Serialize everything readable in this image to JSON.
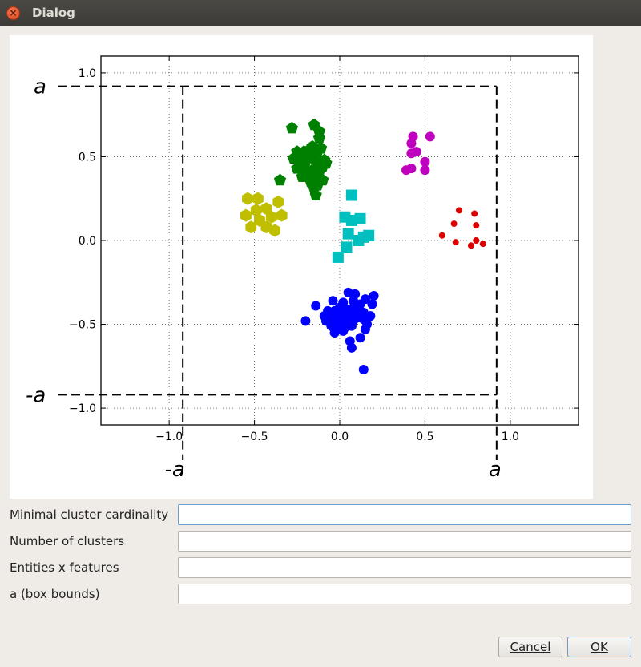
{
  "window": {
    "title": "Dialog",
    "close_icon": "close-icon"
  },
  "chart_data": {
    "type": "scatter",
    "title": "",
    "xlabel": "",
    "ylabel": "",
    "xlim": [
      -1.4,
      1.4
    ],
    "ylim": [
      -1.1,
      1.1
    ],
    "grid": true,
    "x_ticks": [
      -1.0,
      -0.5,
      0.0,
      0.5,
      1.0
    ],
    "x_tick_labels": [
      "−1.0",
      "−0.5",
      "0.0",
      "0.5",
      "1.0"
    ],
    "y_ticks": [
      1.0,
      0.5,
      0.0,
      -0.5,
      -1.0
    ],
    "y_tick_labels": [
      "1.0",
      "0.5",
      "0.0",
      "−0.5",
      "−1.0"
    ],
    "box_bound": 0.92,
    "box_labels": {
      "top": "a",
      "bottom": "-a",
      "left": "-a",
      "right": "a"
    },
    "series": [
      {
        "color": "#008000",
        "marker": "pentagon",
        "points": [
          [
            -0.28,
            0.67
          ],
          [
            -0.15,
            0.69
          ],
          [
            -0.12,
            0.65
          ],
          [
            -0.12,
            0.61
          ],
          [
            -0.25,
            0.53
          ],
          [
            -0.21,
            0.53
          ],
          [
            -0.18,
            0.54
          ],
          [
            -0.2,
            0.47
          ],
          [
            -0.13,
            0.53
          ],
          [
            -0.11,
            0.55
          ],
          [
            -0.27,
            0.49
          ],
          [
            -0.22,
            0.48
          ],
          [
            -0.17,
            0.51
          ],
          [
            -0.15,
            0.5
          ],
          [
            -0.14,
            0.47
          ],
          [
            -0.21,
            0.43
          ],
          [
            -0.16,
            0.42
          ],
          [
            -0.1,
            0.44
          ],
          [
            -0.25,
            0.43
          ],
          [
            -0.18,
            0.4
          ],
          [
            -0.13,
            0.38
          ],
          [
            -0.09,
            0.48
          ],
          [
            -0.22,
            0.38
          ],
          [
            -0.35,
            0.36
          ],
          [
            -0.13,
            0.33
          ],
          [
            -0.17,
            0.35
          ],
          [
            -0.23,
            0.45
          ],
          [
            -0.12,
            0.41
          ],
          [
            -0.08,
            0.46
          ],
          [
            -0.15,
            0.31
          ],
          [
            -0.1,
            0.36
          ],
          [
            -0.14,
            0.27
          ],
          [
            -0.2,
            0.5
          ],
          [
            -0.16,
            0.56
          ]
        ]
      },
      {
        "color": "#bfbf00",
        "marker": "hexagon",
        "points": [
          [
            -0.54,
            0.25
          ],
          [
            -0.48,
            0.25
          ],
          [
            -0.36,
            0.23
          ],
          [
            -0.49,
            0.18
          ],
          [
            -0.43,
            0.19
          ],
          [
            -0.55,
            0.15
          ],
          [
            -0.4,
            0.14
          ],
          [
            -0.34,
            0.15
          ],
          [
            -0.47,
            0.12
          ],
          [
            -0.52,
            0.08
          ],
          [
            -0.43,
            0.08
          ],
          [
            -0.38,
            0.06
          ]
        ]
      },
      {
        "color": "#bf00bf",
        "marker": "circle",
        "points": [
          [
            0.43,
            0.62
          ],
          [
            0.53,
            0.62
          ],
          [
            0.42,
            0.58
          ],
          [
            0.45,
            0.53
          ],
          [
            0.42,
            0.52
          ],
          [
            0.39,
            0.42
          ],
          [
            0.42,
            0.43
          ],
          [
            0.5,
            0.47
          ],
          [
            0.5,
            0.42
          ]
        ]
      },
      {
        "color": "#00bfbf",
        "marker": "square",
        "points": [
          [
            0.07,
            0.27
          ],
          [
            0.03,
            0.14
          ],
          [
            0.07,
            0.12
          ],
          [
            0.12,
            0.13
          ],
          [
            0.05,
            0.04
          ],
          [
            0.14,
            0.02
          ],
          [
            0.17,
            0.03
          ],
          [
            0.04,
            -0.04
          ],
          [
            0.11,
            0.0
          ],
          [
            -0.01,
            -0.1
          ]
        ]
      },
      {
        "color": "#dd0000",
        "marker": "circle",
        "points": [
          [
            0.7,
            0.18
          ],
          [
            0.79,
            0.16
          ],
          [
            0.67,
            0.1
          ],
          [
            0.8,
            0.09
          ],
          [
            0.6,
            0.03
          ],
          [
            0.68,
            -0.01
          ],
          [
            0.8,
            0.0
          ],
          [
            0.77,
            -0.03
          ],
          [
            0.84,
            -0.02
          ]
        ]
      },
      {
        "color": "#0000ff",
        "marker": "circle",
        "points": [
          [
            0.05,
            -0.31
          ],
          [
            0.09,
            -0.32
          ],
          [
            0.15,
            -0.35
          ],
          [
            0.2,
            -0.33
          ],
          [
            -0.04,
            -0.36
          ],
          [
            0.02,
            -0.37
          ],
          [
            0.08,
            -0.36
          ],
          [
            0.12,
            -0.38
          ],
          [
            0.19,
            -0.38
          ],
          [
            0.0,
            -0.4
          ],
          [
            0.04,
            -0.41
          ],
          [
            0.08,
            -0.4
          ],
          [
            -0.07,
            -0.42
          ],
          [
            -0.03,
            -0.42
          ],
          [
            0.02,
            -0.43
          ],
          [
            0.06,
            -0.43
          ],
          [
            0.1,
            -0.43
          ],
          [
            0.14,
            -0.43
          ],
          [
            -0.09,
            -0.45
          ],
          [
            -0.05,
            -0.45
          ],
          [
            -0.01,
            -0.45
          ],
          [
            0.03,
            -0.46
          ],
          [
            0.07,
            -0.45
          ],
          [
            0.11,
            -0.46
          ],
          [
            -0.08,
            -0.48
          ],
          [
            -0.04,
            -0.48
          ],
          [
            0.0,
            -0.49
          ],
          [
            0.04,
            -0.49
          ],
          [
            0.08,
            -0.48
          ],
          [
            0.14,
            -0.47
          ],
          [
            0.18,
            -0.45
          ],
          [
            -0.05,
            -0.51
          ],
          [
            -0.01,
            -0.52
          ],
          [
            0.03,
            -0.52
          ],
          [
            0.07,
            -0.51
          ],
          [
            -0.03,
            -0.55
          ],
          [
            0.02,
            -0.54
          ],
          [
            0.15,
            -0.53
          ],
          [
            -0.2,
            -0.48
          ],
          [
            0.12,
            -0.58
          ],
          [
            0.06,
            -0.6
          ],
          [
            0.07,
            -0.64
          ],
          [
            0.14,
            -0.77
          ],
          [
            -0.14,
            -0.39
          ],
          [
            0.16,
            -0.5
          ],
          [
            0.01,
            -0.47
          ]
        ]
      }
    ]
  },
  "form": {
    "fields": [
      {
        "label": "Minimal cluster cardinality",
        "value": ""
      },
      {
        "label": "Number of clusters",
        "value": ""
      },
      {
        "label": "Entities x features",
        "value": ""
      },
      {
        "label": "a (box bounds)",
        "value": ""
      }
    ]
  },
  "buttons": {
    "cancel": "Cancel",
    "ok": "OK"
  }
}
